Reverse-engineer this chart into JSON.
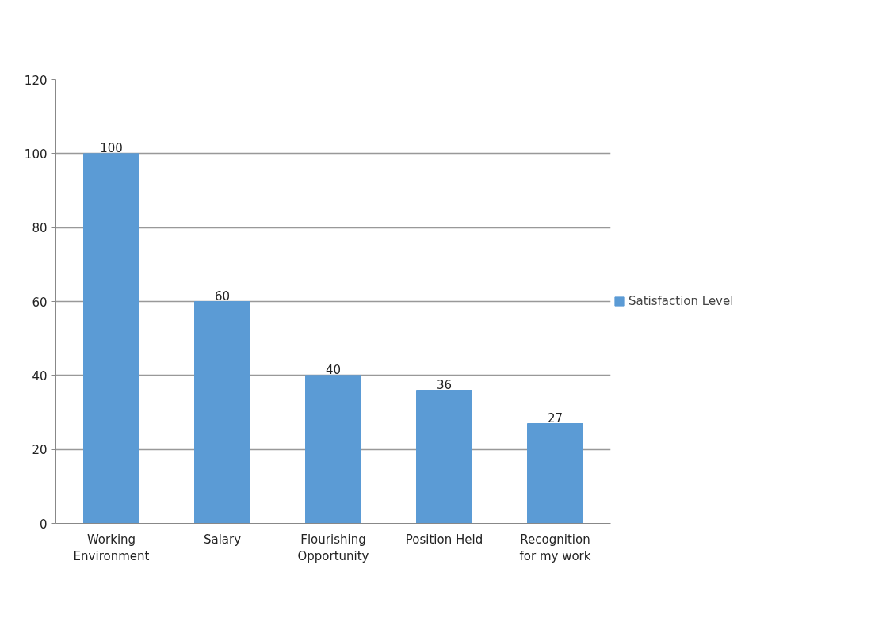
{
  "chart_data": {
    "type": "bar",
    "categories": [
      "Working Environment",
      "Salary",
      "Flourishing Opportunity",
      "Position Held",
      "Recognition for my work"
    ],
    "series": [
      {
        "name": "Satisfaction Level",
        "color": "#5b9bd5",
        "values": [
          100,
          60,
          40,
          36,
          27
        ]
      }
    ],
    "ylim": [
      0,
      120
    ],
    "yticks": [
      0,
      20,
      40,
      60,
      80,
      100,
      120
    ],
    "grid": "y",
    "legend": "right",
    "data_labels": true
  }
}
